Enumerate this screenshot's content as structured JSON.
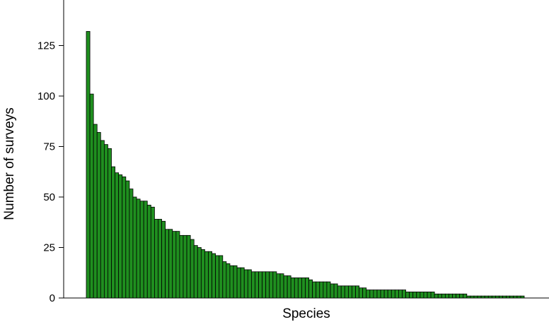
{
  "chart_data": {
    "type": "bar",
    "xlabel": "Species",
    "ylabel": "Number of surveys",
    "ylim": [
      0,
      132
    ],
    "yticks": [
      0,
      25,
      50,
      75,
      100,
      125
    ],
    "grid": false,
    "bar_color": "#1f8f1f",
    "bar_edge_color": "#000000",
    "values": [
      132,
      101,
      86,
      82,
      78,
      76,
      74,
      65,
      62,
      61,
      60,
      58,
      54,
      50,
      49,
      48,
      48,
      46,
      45,
      39,
      39,
      38,
      34,
      34,
      33,
      33,
      31,
      31,
      31,
      29,
      26,
      25,
      24,
      23,
      23,
      22,
      21,
      21,
      18,
      17,
      16,
      16,
      15,
      15,
      14,
      14,
      13,
      13,
      13,
      13,
      13,
      13,
      13,
      12,
      12,
      11,
      11,
      10,
      10,
      10,
      10,
      10,
      9,
      8,
      8,
      8,
      8,
      8,
      7,
      7,
      6,
      6,
      6,
      6,
      6,
      6,
      5,
      5,
      4,
      4,
      4,
      4,
      4,
      4,
      4,
      4,
      4,
      4,
      4,
      3,
      3,
      3,
      3,
      3,
      3,
      3,
      3,
      2,
      2,
      2,
      2,
      2,
      2,
      2,
      2,
      2,
      1,
      1,
      1,
      1,
      1,
      1,
      1,
      1,
      1,
      1,
      1,
      1,
      1,
      1,
      1,
      1
    ]
  }
}
